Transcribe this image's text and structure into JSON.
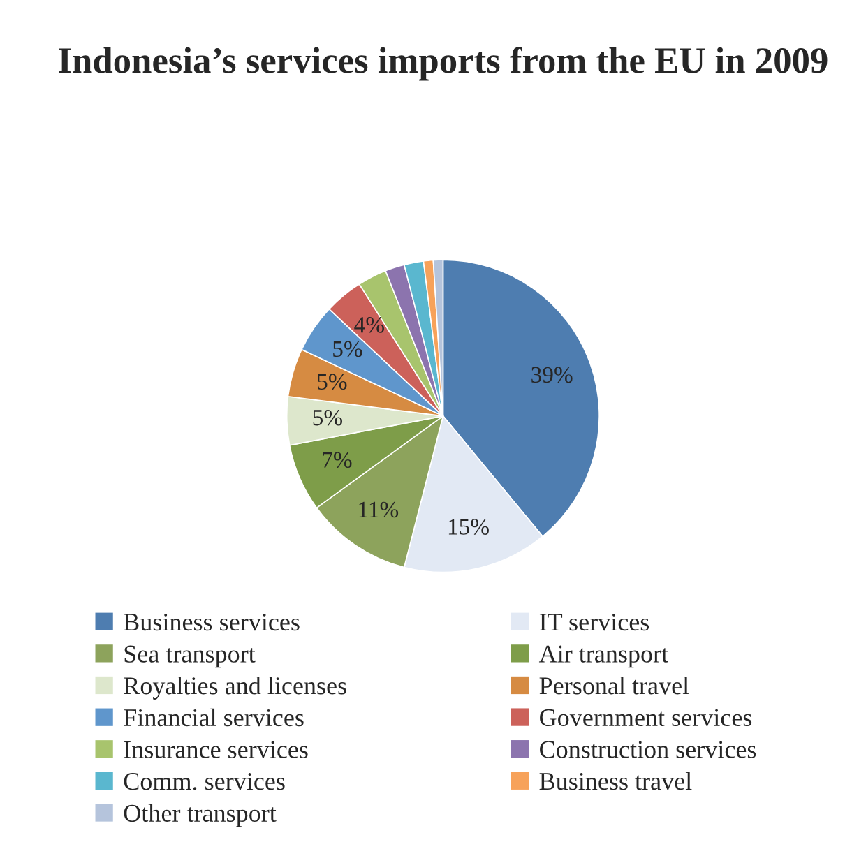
{
  "chart_data": {
    "type": "pie",
    "title": "Indonesia’s services imports from the EU in 2009",
    "categories": [
      "Business services",
      "IT services",
      "Sea transport",
      "Air transport",
      "Royalties and licenses",
      "Personal travel",
      "Financial services",
      "Government services",
      "Insurance services",
      "Construction services",
      "Comm. services",
      "Business travel",
      "Other transport"
    ],
    "values": [
      39,
      15,
      11,
      7,
      5,
      5,
      5,
      4,
      3,
      2,
      2,
      1,
      1
    ],
    "value_labels": [
      "39%",
      "15%",
      "11%",
      "7%",
      "5%",
      "5%",
      "5%",
      "4%",
      null,
      null,
      null,
      null,
      null
    ],
    "colors": [
      "#4e7db0",
      "#e2e9f4",
      "#8da35c",
      "#7e9d49",
      "#dde7cc",
      "#d68b42",
      "#5f96cc",
      "#cc615a",
      "#a8c46d",
      "#8c74ae",
      "#5ab7cf",
      "#f7a25a",
      "#b5c4dc"
    ],
    "legend": "bottom"
  }
}
